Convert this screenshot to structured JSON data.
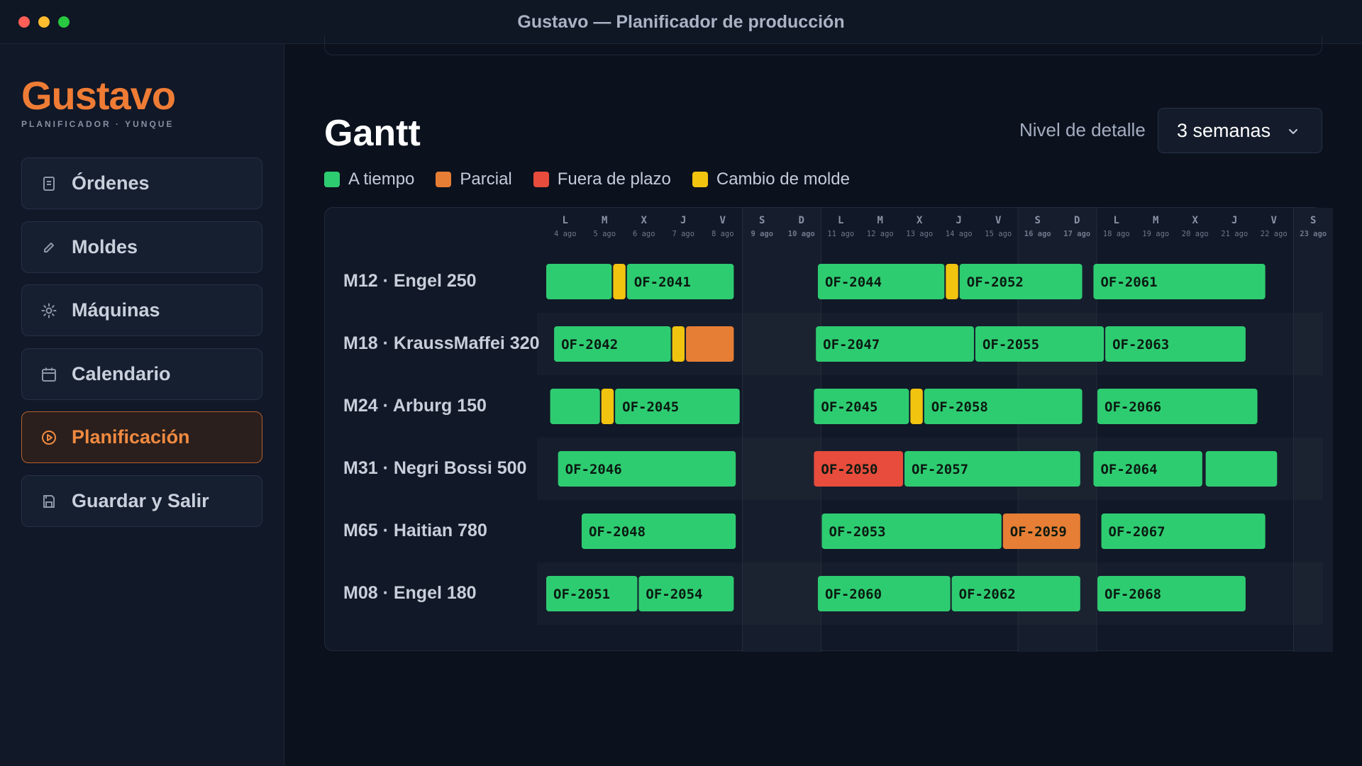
{
  "window": {
    "title": "Gustavo — Planificador de producción"
  },
  "sidebar": {
    "brand": "Gustavo",
    "brand_sub": "PLANIFICADOR · YUNQUE",
    "items": [
      {
        "label": "Órdenes",
        "icon": "clipboard-icon",
        "active": false
      },
      {
        "label": "Moldes",
        "icon": "pencil-icon",
        "active": false
      },
      {
        "label": "Máquinas",
        "icon": "gear-icon",
        "active": false
      },
      {
        "label": "Calendario",
        "icon": "calendar-icon",
        "active": false
      },
      {
        "label": "Planificación",
        "icon": "play-circle-icon",
        "active": true
      },
      {
        "label": "Guardar y Salir",
        "icon": "save-icon",
        "active": false
      }
    ]
  },
  "main": {
    "title": "Gantt",
    "detail_label": "Nivel de detalle",
    "detail_value": "3 semanas",
    "legend": [
      {
        "label": "A tiempo",
        "color": "#2ecc71"
      },
      {
        "label": "Parcial",
        "color": "#e67e35"
      },
      {
        "label": "Fuera de plazo",
        "color": "#e74c3c"
      },
      {
        "label": "Cambio de molde",
        "color": "#f1c40f"
      }
    ]
  },
  "gantt": {
    "days": [
      {
        "letter": "L",
        "date": "4 ago",
        "weekend": false
      },
      {
        "letter": "M",
        "date": "5 ago",
        "weekend": false
      },
      {
        "letter": "X",
        "date": "6 ago",
        "weekend": false
      },
      {
        "letter": "J",
        "date": "7 ago",
        "weekend": false
      },
      {
        "letter": "V",
        "date": "8 ago",
        "weekend": false
      },
      {
        "letter": "S",
        "date": "9 ago",
        "weekend": true
      },
      {
        "letter": "D",
        "date": "10 ago",
        "weekend": true
      },
      {
        "letter": "L",
        "date": "11 ago",
        "weekend": false
      },
      {
        "letter": "M",
        "date": "12 ago",
        "weekend": false
      },
      {
        "letter": "X",
        "date": "13 ago",
        "weekend": false
      },
      {
        "letter": "J",
        "date": "14 ago",
        "weekend": false
      },
      {
        "letter": "V",
        "date": "15 ago",
        "weekend": false
      },
      {
        "letter": "S",
        "date": "16 ago",
        "weekend": true
      },
      {
        "letter": "D",
        "date": "17 ago",
        "weekend": true
      },
      {
        "letter": "L",
        "date": "18 ago",
        "weekend": false
      },
      {
        "letter": "M",
        "date": "19 ago",
        "weekend": false
      },
      {
        "letter": "X",
        "date": "20 ago",
        "weekend": false
      },
      {
        "letter": "J",
        "date": "21 ago",
        "weekend": false
      },
      {
        "letter": "V",
        "date": "22 ago",
        "weekend": false
      },
      {
        "letter": "S",
        "date": "23 ago",
        "weekend": true
      }
    ],
    "machines": [
      {
        "name": "M12 · Engel 250",
        "bars": [
          {
            "start": 0.0,
            "end": 1.7,
            "status": "on_time",
            "label": ""
          },
          {
            "start": 1.7,
            "end": 2.05,
            "status": "mold_change",
            "label": ""
          },
          {
            "start": 2.05,
            "end": 4.8,
            "status": "on_time",
            "label": "OF-2041"
          },
          {
            "start": 6.9,
            "end": 10.15,
            "status": "on_time",
            "label": "OF-2044"
          },
          {
            "start": 10.15,
            "end": 10.5,
            "status": "mold_change",
            "label": ""
          },
          {
            "start": 10.5,
            "end": 13.65,
            "status": "on_time",
            "label": "OF-2052"
          },
          {
            "start": 13.9,
            "end": 18.3,
            "status": "on_time",
            "label": "OF-2061"
          }
        ]
      },
      {
        "name": "M18 · KraussMaffei 320",
        "bars": [
          {
            "start": 0.2,
            "end": 3.2,
            "status": "on_time",
            "label": "OF-2042"
          },
          {
            "start": 3.2,
            "end": 3.55,
            "status": "mold_change",
            "label": ""
          },
          {
            "start": 3.55,
            "end": 4.8,
            "status": "partial",
            "label": ""
          },
          {
            "start": 6.85,
            "end": 10.9,
            "status": "on_time",
            "label": "OF-2047"
          },
          {
            "start": 10.9,
            "end": 14.2,
            "status": "on_time",
            "label": "OF-2055"
          },
          {
            "start": 14.2,
            "end": 17.8,
            "status": "on_time",
            "label": "OF-2063"
          }
        ]
      },
      {
        "name": "M24 · Arburg 150",
        "bars": [
          {
            "start": 0.1,
            "end": 1.4,
            "status": "on_time",
            "label": ""
          },
          {
            "start": 1.4,
            "end": 1.75,
            "status": "mold_change",
            "label": ""
          },
          {
            "start": 1.75,
            "end": 4.95,
            "status": "on_time",
            "label": "OF-2045"
          },
          {
            "start": 6.8,
            "end": 9.25,
            "status": "on_time",
            "label": "OF-2045"
          },
          {
            "start": 9.25,
            "end": 9.6,
            "status": "mold_change",
            "label": ""
          },
          {
            "start": 9.6,
            "end": 13.65,
            "status": "on_time",
            "label": "OF-2058"
          },
          {
            "start": 14.0,
            "end": 18.1,
            "status": "on_time",
            "label": "OF-2066"
          }
        ]
      },
      {
        "name": "M31 · Negri Bossi 500",
        "bars": [
          {
            "start": 0.3,
            "end": 4.85,
            "status": "on_time",
            "label": "OF-2046"
          },
          {
            "start": 6.8,
            "end": 9.1,
            "status": "late",
            "label": "OF-2050"
          },
          {
            "start": 9.1,
            "end": 13.6,
            "status": "on_time",
            "label": "OF-2057"
          },
          {
            "start": 13.9,
            "end": 16.7,
            "status": "on_time",
            "label": "OF-2064"
          },
          {
            "start": 16.75,
            "end": 18.6,
            "status": "on_time",
            "label": ""
          }
        ]
      },
      {
        "name": "M65 · Haitian 780",
        "bars": [
          {
            "start": 0.9,
            "end": 4.85,
            "status": "on_time",
            "label": "OF-2048"
          },
          {
            "start": 7.0,
            "end": 11.6,
            "status": "on_time",
            "label": "OF-2053"
          },
          {
            "start": 11.6,
            "end": 13.6,
            "status": "partial",
            "label": "OF-2059"
          },
          {
            "start": 14.1,
            "end": 18.3,
            "status": "on_time",
            "label": "OF-2067"
          }
        ]
      },
      {
        "name": "M08 · Engel 180",
        "bars": [
          {
            "start": 0.0,
            "end": 2.35,
            "status": "on_time",
            "label": "OF-2051"
          },
          {
            "start": 2.35,
            "end": 4.8,
            "status": "on_time",
            "label": "OF-2054"
          },
          {
            "start": 6.9,
            "end": 10.3,
            "status": "on_time",
            "label": "OF-2060"
          },
          {
            "start": 10.3,
            "end": 13.6,
            "status": "on_time",
            "label": "OF-2062"
          },
          {
            "start": 14.0,
            "end": 17.8,
            "status": "on_time",
            "label": "OF-2068"
          }
        ]
      }
    ],
    "status_colors": {
      "on_time": "#2ecc71",
      "partial": "#e67e35",
      "late": "#e74c3c",
      "mold_change": "#f1c40f"
    }
  }
}
